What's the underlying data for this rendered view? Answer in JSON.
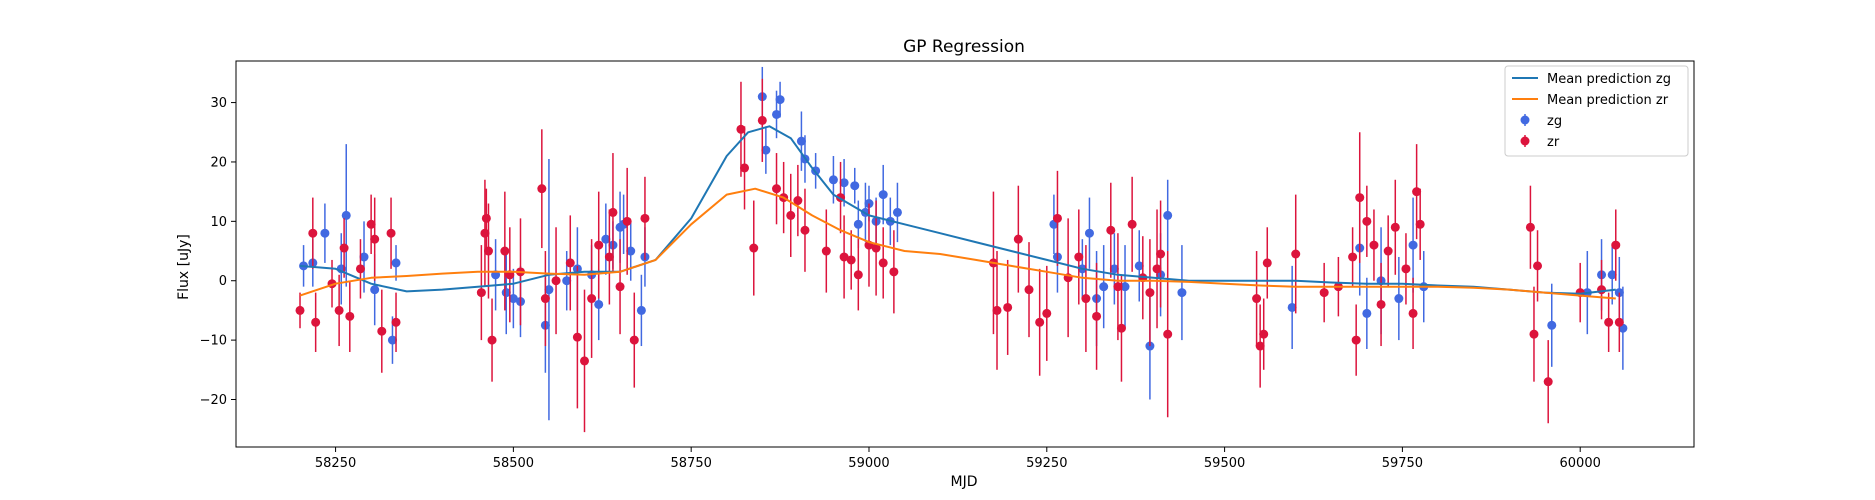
{
  "chart_data": {
    "type": "scatter",
    "title": "GP Regression",
    "xlabel": "MJD",
    "ylabel": "Flux [uJy]",
    "xlim": [
      58110,
      60160
    ],
    "ylim": [
      -28,
      37
    ],
    "xticks": [
      58250,
      58500,
      58750,
      59000,
      59250,
      59500,
      59750,
      60000
    ],
    "yticks": [
      -20,
      -10,
      0,
      10,
      20,
      30
    ],
    "grid": false,
    "legend": {
      "position": "top-right",
      "entries": [
        "Mean prediction zg",
        "Mean prediction zr",
        "zg",
        "zr"
      ]
    },
    "series": [
      {
        "name": "Mean prediction zg",
        "kind": "line",
        "color": "#1f77b4",
        "x": [
          58200,
          58250,
          58300,
          58350,
          58400,
          58450,
          58500,
          58550,
          58600,
          58650,
          58700,
          58750,
          58800,
          58830,
          58860,
          58890,
          58920,
          58950,
          59000,
          59050,
          59100,
          59150,
          59200,
          59250,
          59300,
          59350,
          59400,
          59450,
          59500,
          59550,
          59600,
          59650,
          59700,
          59750,
          59800,
          59850,
          59900,
          59950,
          60000,
          60050
        ],
        "y": [
          2.5,
          2.0,
          -0.5,
          -1.8,
          -1.5,
          -1.0,
          -0.5,
          1.0,
          1.5,
          1.5,
          3.5,
          10.5,
          21.0,
          25.0,
          26.0,
          24.0,
          19.0,
          14.5,
          11.0,
          9.5,
          8.0,
          6.5,
          5.0,
          3.5,
          2.0,
          1.0,
          0.5,
          0.0,
          0.0,
          0.0,
          0.0,
          -0.3,
          -0.5,
          -0.5,
          -0.8,
          -1.0,
          -1.5,
          -2.0,
          -2.2,
          -1.5
        ]
      },
      {
        "name": "Mean prediction zr",
        "kind": "line",
        "color": "#ff7f0e",
        "x": [
          58200,
          58250,
          58300,
          58350,
          58400,
          58450,
          58500,
          58550,
          58600,
          58650,
          58700,
          58750,
          58800,
          58840,
          58880,
          58920,
          58960,
          59000,
          59050,
          59100,
          59150,
          59200,
          59250,
          59300,
          59350,
          59400,
          59450,
          59500,
          59550,
          59600,
          59650,
          59700,
          59750,
          59800,
          59850,
          59900,
          59950,
          60000,
          60050
        ],
        "y": [
          -2.5,
          -0.5,
          0.5,
          0.8,
          1.2,
          1.5,
          1.5,
          1.2,
          1.0,
          1.5,
          3.5,
          9.5,
          14.5,
          15.5,
          14.0,
          11.0,
          8.5,
          6.5,
          5.0,
          4.5,
          3.5,
          2.5,
          1.5,
          0.5,
          0.0,
          0.0,
          -0.2,
          -0.5,
          -0.8,
          -1.0,
          -1.0,
          -1.0,
          -1.0,
          -1.0,
          -1.2,
          -1.5,
          -2.0,
          -2.5,
          -3.0
        ]
      },
      {
        "name": "zg",
        "kind": "errorbar",
        "color": "#4169e1",
        "points": [
          [
            58205,
            2.5,
            3.5
          ],
          [
            58218,
            3.0,
            4
          ],
          [
            58235,
            8,
            5
          ],
          [
            58258,
            2,
            6
          ],
          [
            58265,
            11,
            12
          ],
          [
            58290,
            4,
            6
          ],
          [
            58305,
            -1.5,
            6
          ],
          [
            58330,
            -10,
            4
          ],
          [
            58335,
            3,
            3
          ],
          [
            58475,
            1,
            6
          ],
          [
            58490,
            -2,
            7
          ],
          [
            58500,
            -3,
            5
          ],
          [
            58510,
            -3.5,
            6
          ],
          [
            58545,
            -7.5,
            8
          ],
          [
            58550,
            -1.5,
            22
          ],
          [
            58575,
            0,
            5
          ],
          [
            58590,
            2,
            7
          ],
          [
            58610,
            1,
            5
          ],
          [
            58620,
            -4,
            6
          ],
          [
            58630,
            7,
            6
          ],
          [
            58640,
            6,
            4
          ],
          [
            58650,
            9,
            6
          ],
          [
            58655,
            9.5,
            5
          ],
          [
            58665,
            5,
            5
          ],
          [
            58680,
            -5,
            6
          ],
          [
            58685,
            4,
            5
          ],
          [
            58850,
            31,
            5
          ],
          [
            58855,
            22,
            4
          ],
          [
            58870,
            28,
            4
          ],
          [
            58875,
            30.5,
            3
          ],
          [
            58905,
            23.5,
            5
          ],
          [
            58910,
            20.5,
            4
          ],
          [
            58925,
            18.5,
            3
          ],
          [
            58950,
            17,
            4
          ],
          [
            58965,
            16.5,
            4
          ],
          [
            58980,
            16,
            3
          ],
          [
            58985,
            9.5,
            4
          ],
          [
            58995,
            11.5,
            5
          ],
          [
            59000,
            13,
            3
          ],
          [
            59010,
            10,
            4
          ],
          [
            59020,
            14.5,
            5
          ],
          [
            59030,
            10,
            4
          ],
          [
            59040,
            11.5,
            5
          ],
          [
            59260,
            9.5,
            5
          ],
          [
            59265,
            4,
            6
          ],
          [
            59300,
            2,
            5
          ],
          [
            59310,
            8,
            6
          ],
          [
            59320,
            -3,
            8
          ],
          [
            59330,
            -1,
            7
          ],
          [
            59345,
            2,
            6
          ],
          [
            59360,
            -1,
            7
          ],
          [
            59380,
            2.5,
            6
          ],
          [
            59395,
            -11,
            9
          ],
          [
            59410,
            1,
            7
          ],
          [
            59420,
            11,
            6
          ],
          [
            59440,
            -2,
            8
          ],
          [
            59595,
            -4.5,
            7
          ],
          [
            59690,
            5.5,
            8
          ],
          [
            59700,
            -5.5,
            6
          ],
          [
            59720,
            0,
            9
          ],
          [
            59745,
            -3,
            7
          ],
          [
            59765,
            6,
            8
          ],
          [
            59780,
            -1,
            6
          ],
          [
            60010,
            -2,
            7
          ],
          [
            60030,
            1,
            6
          ],
          [
            60045,
            1,
            5
          ],
          [
            60055,
            -2,
            6
          ],
          [
            60060,
            -8,
            7
          ],
          [
            59960,
            -7.5,
            7
          ]
        ]
      },
      {
        "name": "zr",
        "kind": "errorbar",
        "color": "#dc143c",
        "points": [
          [
            58200,
            -5,
            3
          ],
          [
            58218,
            8,
            6
          ],
          [
            58222,
            -7,
            5
          ],
          [
            58245,
            -0.5,
            4
          ],
          [
            58255,
            -5,
            6
          ],
          [
            58262,
            5.5,
            5
          ],
          [
            58270,
            -6,
            6
          ],
          [
            58285,
            2,
            5
          ],
          [
            58300,
            9.5,
            5
          ],
          [
            58305,
            7,
            7
          ],
          [
            58315,
            -8.5,
            7
          ],
          [
            58328,
            8,
            6
          ],
          [
            58335,
            -7,
            5
          ],
          [
            58455,
            -2,
            8
          ],
          [
            58460,
            8,
            9
          ],
          [
            58462,
            10.5,
            5
          ],
          [
            58465,
            5,
            8
          ],
          [
            58470,
            -10,
            7
          ],
          [
            58488,
            5,
            10
          ],
          [
            58495,
            1,
            8
          ],
          [
            58510,
            1.5,
            9
          ],
          [
            58540,
            15.5,
            10
          ],
          [
            58545,
            -3,
            8
          ],
          [
            58560,
            0,
            9
          ],
          [
            58580,
            3,
            8
          ],
          [
            58590,
            -9.5,
            12
          ],
          [
            58600,
            -13.5,
            12
          ],
          [
            58610,
            -3,
            10
          ],
          [
            58620,
            6,
            9
          ],
          [
            58635,
            4,
            8
          ],
          [
            58640,
            11.5,
            10
          ],
          [
            58650,
            -1,
            8
          ],
          [
            58660,
            10,
            9
          ],
          [
            58670,
            -10,
            8
          ],
          [
            58685,
            10.5,
            7
          ],
          [
            58820,
            25.5,
            8
          ],
          [
            58825,
            19,
            7
          ],
          [
            58838,
            5.5,
            8
          ],
          [
            58850,
            27,
            7
          ],
          [
            58870,
            15.5,
            6
          ],
          [
            58880,
            14,
            6
          ],
          [
            58890,
            11,
            7
          ],
          [
            58900,
            13.5,
            6
          ],
          [
            58910,
            8.5,
            7
          ],
          [
            58940,
            5,
            7
          ],
          [
            58960,
            14,
            6
          ],
          [
            58965,
            4,
            7
          ],
          [
            58975,
            3.5,
            5
          ],
          [
            58985,
            1,
            6
          ],
          [
            59000,
            6,
            7
          ],
          [
            59010,
            5.5,
            8
          ],
          [
            59020,
            3,
            6
          ],
          [
            59035,
            1.5,
            7
          ],
          [
            59175,
            3,
            12
          ],
          [
            59180,
            -5,
            10
          ],
          [
            59195,
            -4.5,
            8
          ],
          [
            59210,
            7,
            9
          ],
          [
            59225,
            -1.5,
            8
          ],
          [
            59240,
            -7,
            9
          ],
          [
            59250,
            -5.5,
            8
          ],
          [
            59265,
            10.5,
            8
          ],
          [
            59280,
            0.5,
            10
          ],
          [
            59295,
            4,
            8
          ],
          [
            59305,
            -3,
            9
          ],
          [
            59320,
            -6,
            9
          ],
          [
            59340,
            8.5,
            8
          ],
          [
            59350,
            -1,
            9
          ],
          [
            59355,
            -8,
            9
          ],
          [
            59370,
            9.5,
            8
          ],
          [
            59385,
            0.5,
            7
          ],
          [
            59395,
            -2,
            9
          ],
          [
            59405,
            2,
            10
          ],
          [
            59410,
            4.5,
            9
          ],
          [
            59420,
            -9,
            14
          ],
          [
            59545,
            -3,
            8
          ],
          [
            59550,
            -11,
            7
          ],
          [
            59555,
            -9,
            6
          ],
          [
            59560,
            3,
            6
          ],
          [
            59600,
            4.5,
            10
          ],
          [
            59640,
            -2,
            5
          ],
          [
            59660,
            -1,
            5
          ],
          [
            59680,
            4,
            5
          ],
          [
            59685,
            -10,
            6
          ],
          [
            59690,
            14,
            11
          ],
          [
            59700,
            10,
            6
          ],
          [
            59710,
            6,
            6
          ],
          [
            59720,
            -4,
            7
          ],
          [
            59730,
            5,
            6
          ],
          [
            59740,
            9,
            8
          ],
          [
            59755,
            2,
            6
          ],
          [
            59765,
            -5.5,
            6
          ],
          [
            59770,
            15,
            8
          ],
          [
            59775,
            9.5,
            6
          ],
          [
            59930,
            9,
            7
          ],
          [
            59935,
            -9,
            8
          ],
          [
            59940,
            2.5,
            6
          ],
          [
            59955,
            -17,
            7
          ],
          [
            60000,
            -2,
            5
          ],
          [
            60030,
            -1.5,
            5
          ],
          [
            60040,
            -7,
            5
          ],
          [
            60050,
            6,
            6
          ],
          [
            60055,
            -7,
            5
          ]
        ]
      }
    ]
  }
}
